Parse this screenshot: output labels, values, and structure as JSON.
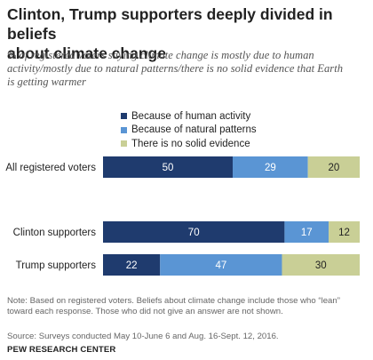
{
  "header": {
    "title_lines": [
      "Clinton, Trump supporters deeply divided in beliefs",
      "about climate change"
    ],
    "subtitle_lines": [
      "% of registered voters saying climate change is mostly due to human",
      "activity/mostly due to natural patterns/there is no solid evidence that Earth",
      "is getting warmer"
    ]
  },
  "chart_data": {
    "type": "bar",
    "orientation": "horizontal",
    "stacked": true,
    "categories": [
      "All registered voters",
      "Clinton supporters",
      "Trump supporters"
    ],
    "series": [
      {
        "name": "Because of human activity",
        "values": [
          50,
          70,
          22
        ],
        "color": "#1f3b6e"
      },
      {
        "name": "Because of natural patterns",
        "values": [
          29,
          17,
          47
        ],
        "color": "#5a95d4"
      },
      {
        "name": "There is no solid evidence",
        "values": [
          20,
          12,
          30
        ],
        "color": "#c9cf96"
      }
    ],
    "xlim": [
      0,
      100
    ],
    "grid": false,
    "legend_position": "top"
  },
  "footer": {
    "note_lines": [
      "Note: Based on registered voters. Beliefs about climate change include those who “lean”",
      "toward each response. Those who did not give an answer are not shown."
    ],
    "source": "Source: Surveys conducted May 10-June 6 and Aug. 16-Sept. 12, 2016.",
    "org": "PEW RESEARCH CENTER"
  }
}
